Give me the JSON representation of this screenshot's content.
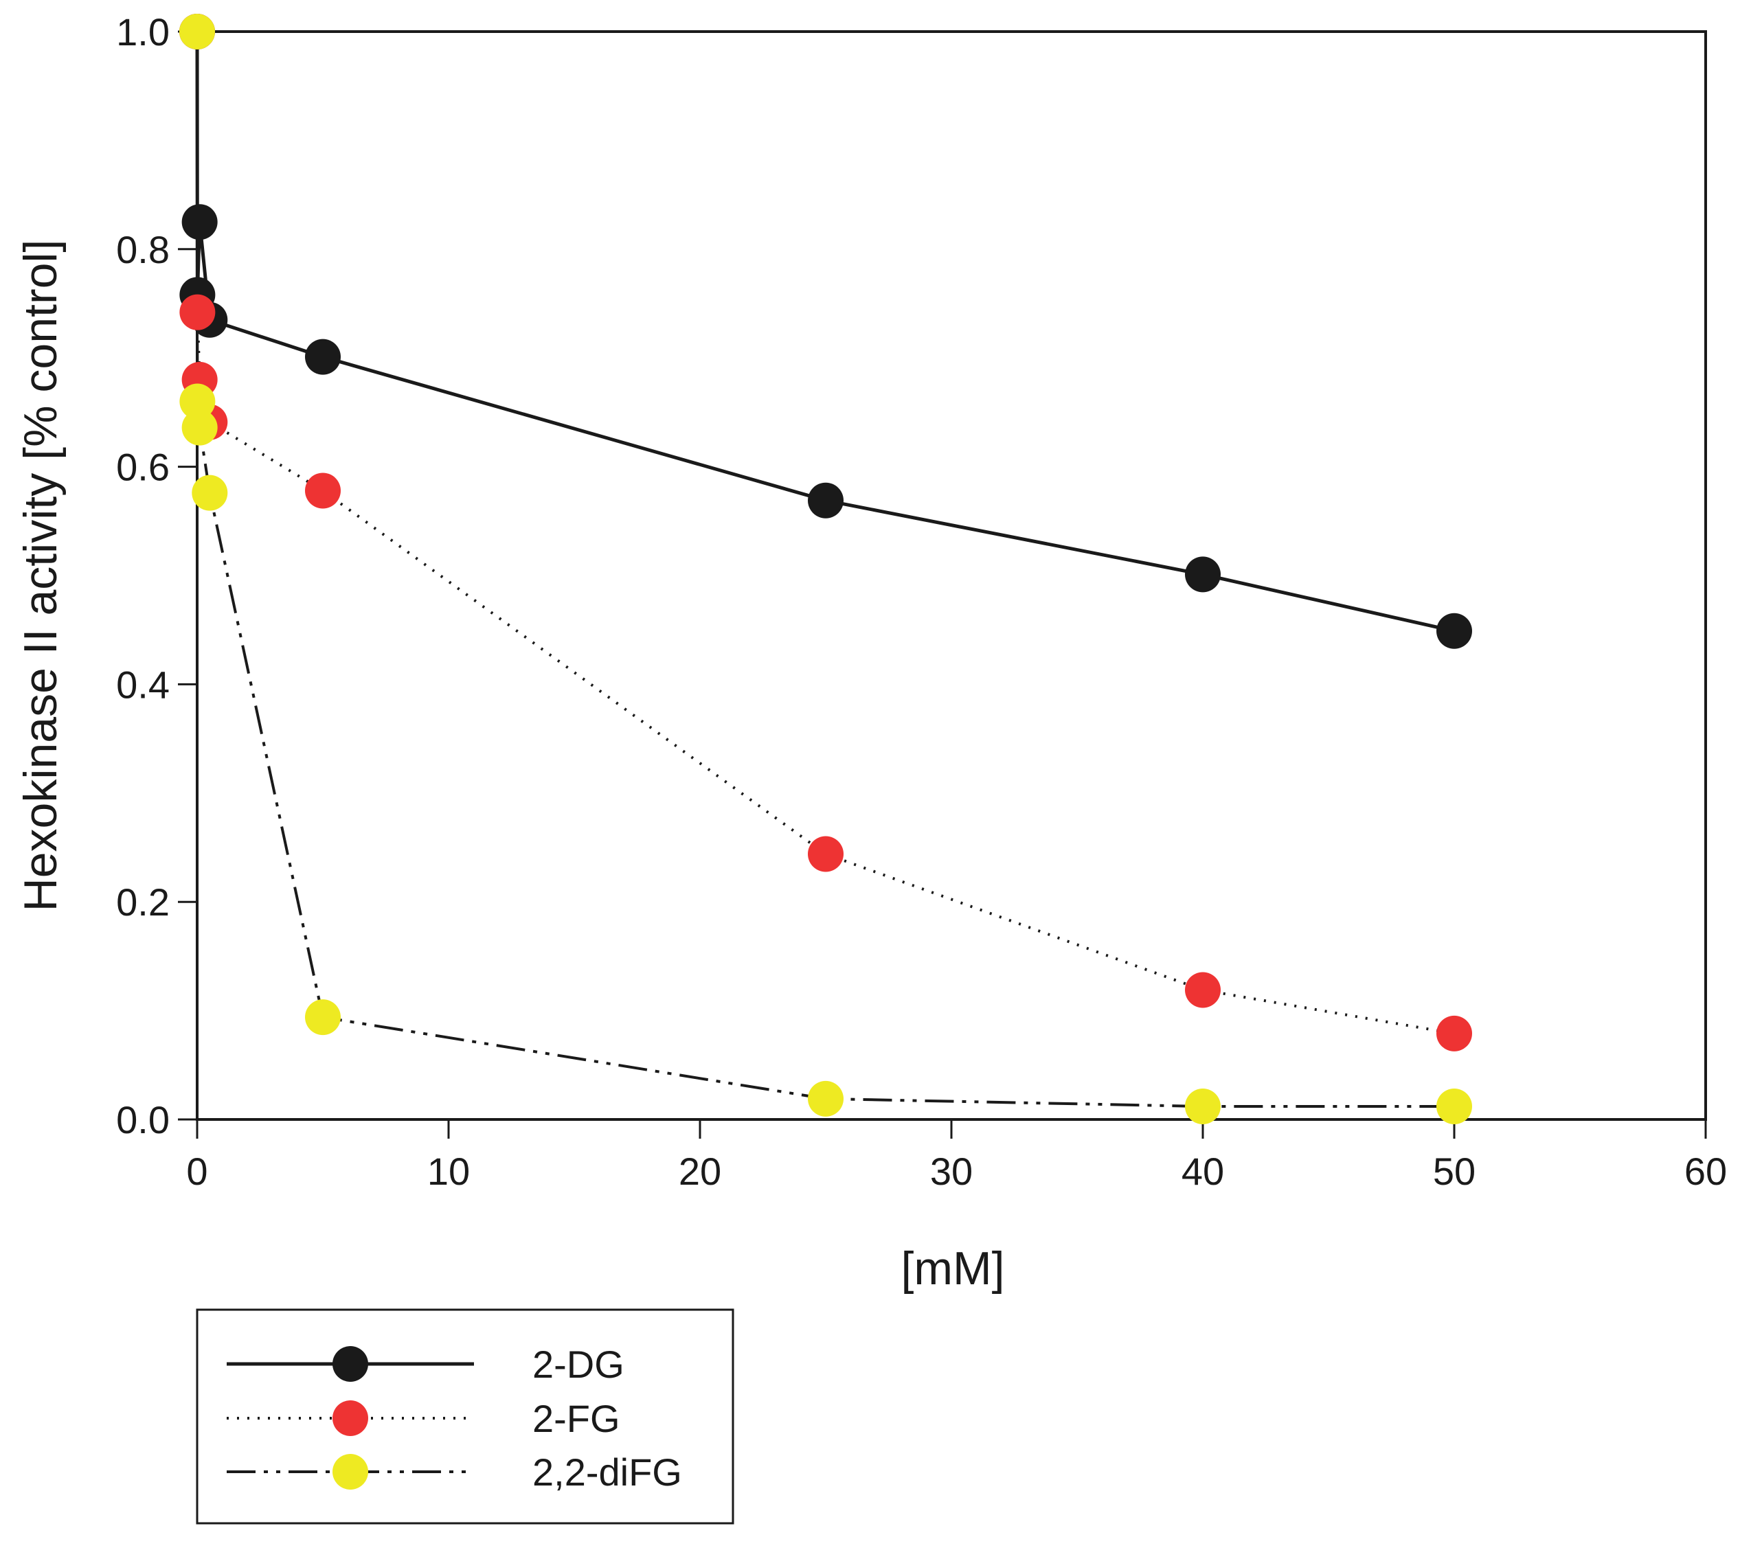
{
  "chart_data": {
    "type": "line",
    "title": "",
    "xlabel": "[mM]",
    "ylabel": "Hexokinase II activity [% control]",
    "xlim": [
      0,
      60
    ],
    "ylim": [
      0,
      1.0
    ],
    "xticks": [
      0,
      10,
      20,
      30,
      40,
      50,
      60
    ],
    "yticks": [
      0.0,
      0.2,
      0.4,
      0.6,
      0.8,
      1.0
    ],
    "ytick_labels": [
      "0.0",
      "0.2",
      "0.4",
      "0.6",
      "0.8",
      "1.0"
    ],
    "grid": false,
    "legend_position": "bottom-left, below plot",
    "series": [
      {
        "name": "2-DG",
        "color": "#1a1a1a",
        "line_style": "solid",
        "x": [
          0,
          0.01,
          0.1,
          0.5,
          5,
          25,
          40,
          50
        ],
        "y": [
          1.0,
          0.758,
          0.825,
          0.735,
          0.701,
          0.569,
          0.501,
          0.449
        ]
      },
      {
        "name": "2-FG",
        "color": "#ee3333",
        "line_style": "dotted",
        "x": [
          0,
          0.01,
          0.1,
          0.5,
          5,
          25,
          40,
          50
        ],
        "y": [
          1.0,
          0.742,
          0.68,
          0.641,
          0.578,
          0.244,
          0.119,
          0.079
        ]
      },
      {
        "name": "2,2-diFG",
        "color": "#eeea22",
        "line_style": "dash-dot-dot",
        "x": [
          0,
          0.01,
          0.1,
          0.5,
          5,
          25,
          40,
          50
        ],
        "y": [
          1.0,
          0.66,
          0.636,
          0.576,
          0.094,
          0.019,
          0.012,
          0.012
        ]
      }
    ]
  }
}
